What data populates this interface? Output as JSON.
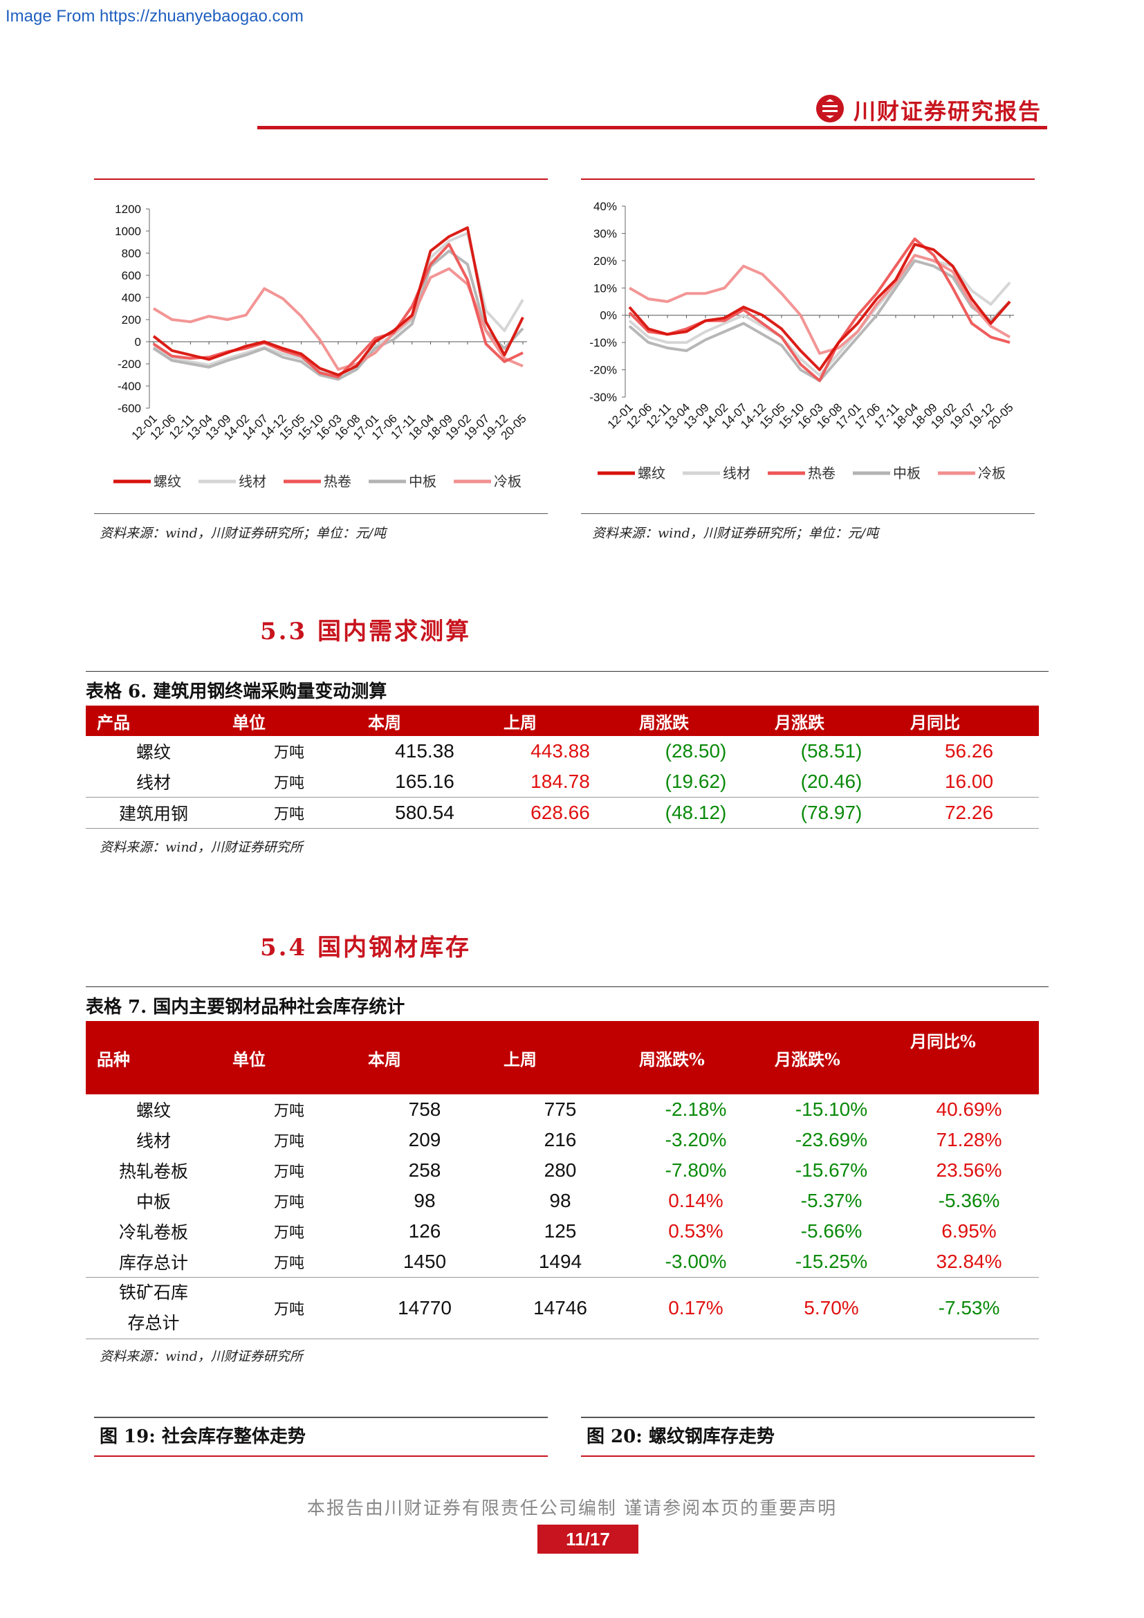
{
  "watermark": "Image From https://zhuanyebaogao.com",
  "header": {
    "brand": "川财证券研究报告"
  },
  "charts": [
    {
      "source": "资料来源：wind，川财证券研究所；单位：元/吨",
      "chart_data": {
        "type": "line",
        "yticks": [
          "1200",
          "1000",
          "800",
          "600",
          "400",
          "200",
          "0",
          "-200",
          "-400",
          "-600"
        ],
        "ylim": [
          -600,
          1200
        ],
        "x": [
          "12-01",
          "12-06",
          "12-11",
          "13-04",
          "13-09",
          "14-02",
          "14-07",
          "14-12",
          "15-05",
          "15-10",
          "16-03",
          "16-08",
          "17-01",
          "17-06",
          "17-11",
          "18-04",
          "18-09",
          "19-02",
          "19-07",
          "19-12",
          "20-05"
        ],
        "series": [
          {
            "name": "螺纹",
            "color": "#d9120c",
            "values": [
              50,
              -80,
              -120,
              -160,
              -100,
              -40,
              0,
              -60,
              -110,
              -240,
              -300,
              -220,
              0,
              100,
              240,
              820,
              950,
              1030,
              180,
              -120,
              220
            ]
          },
          {
            "name": "线材",
            "color": "#d4d4d4",
            "values": [
              -50,
              -150,
              -180,
              -210,
              -150,
              -100,
              -50,
              -110,
              -150,
              -260,
              -310,
              -230,
              -40,
              60,
              200,
              760,
              910,
              980,
              280,
              100,
              380
            ]
          },
          {
            "name": "热卷",
            "color": "#ee5555",
            "values": [
              -20,
              -130,
              -150,
              -140,
              -90,
              -60,
              -10,
              -80,
              -130,
              -280,
              -320,
              -150,
              30,
              80,
              320,
              700,
              880,
              560,
              -20,
              -180,
              -100
            ]
          },
          {
            "name": "中板",
            "color": "#b3b3b3",
            "values": [
              -60,
              -170,
              -200,
              -230,
              -170,
              -120,
              -60,
              -140,
              -180,
              -300,
              -340,
              -250,
              -60,
              20,
              160,
              680,
              820,
              700,
              100,
              -60,
              120
            ]
          },
          {
            "name": "冷板",
            "color": "#f28f8f",
            "values": [
              300,
              200,
              180,
              230,
              200,
              240,
              480,
              390,
              230,
              20,
              -250,
              -200,
              -100,
              80,
              220,
              580,
              660,
              520,
              100,
              -150,
              -220
            ]
          }
        ]
      }
    },
    {
      "source": "资料来源：wind，川财证券研究所；单位：元/吨",
      "chart_data": {
        "type": "line",
        "yticks": [
          "40%",
          "30%",
          "20%",
          "10%",
          "0%",
          "-10%",
          "-20%",
          "-30%"
        ],
        "ylim": [
          -30,
          40
        ],
        "x": [
          "12-01",
          "12-06",
          "12-11",
          "13-04",
          "13-09",
          "14-02",
          "14-07",
          "14-12",
          "15-05",
          "15-10",
          "16-03",
          "16-08",
          "17-01",
          "17-06",
          "17-11",
          "18-04",
          "18-09",
          "19-02",
          "19-07",
          "19-12",
          "20-05"
        ],
        "series": [
          {
            "name": "螺纹",
            "color": "#d9120c",
            "values": [
              3,
              -5,
              -7,
              -6,
              -2,
              -1,
              3,
              0,
              -5,
              -13,
              -20,
              -10,
              -3,
              6,
              13,
              26,
              24,
              18,
              6,
              -3,
              5
            ]
          },
          {
            "name": "线材",
            "color": "#d4d4d4",
            "values": [
              -2,
              -8,
              -10,
              -10,
              -6,
              -3,
              0,
              -4,
              -8,
              -16,
              -22,
              -14,
              -6,
              3,
              11,
              22,
              20,
              18,
              9,
              4,
              12
            ]
          },
          {
            "name": "热卷",
            "color": "#ee5555",
            "values": [
              1,
              -6,
              -7,
              -5,
              -2,
              -2,
              2,
              -3,
              -8,
              -18,
              -24,
              -10,
              0,
              8,
              18,
              28,
              22,
              10,
              -3,
              -8,
              -10
            ]
          },
          {
            "name": "中板",
            "color": "#b3b3b3",
            "values": [
              -4,
              -10,
              -12,
              -13,
              -9,
              -6,
              -3,
              -7,
              -11,
              -20,
              -24,
              -16,
              -8,
              0,
              10,
              20,
              18,
              14,
              3,
              -2,
              5
            ]
          },
          {
            "name": "冷板",
            "color": "#f28f8f",
            "values": [
              10,
              6,
              5,
              8,
              8,
              10,
              18,
              15,
              8,
              0,
              -14,
              -12,
              -6,
              4,
              12,
              22,
              20,
              16,
              4,
              -4,
              -8
            ]
          }
        ]
      }
    }
  ],
  "sections": {
    "s53": "5.3 国内需求测算",
    "s54": "5.4 国内钢材库存"
  },
  "table6": {
    "caption": "表格 6.  建筑用钢终端采购量变动测算",
    "headers": [
      "产品",
      "单位",
      "本周",
      "上周",
      "周涨跌",
      "月涨跌",
      "月同比"
    ],
    "rows": [
      [
        "螺纹",
        "万吨",
        "415.38",
        "443.88",
        "(28.50)",
        "(58.51)",
        "56.26"
      ],
      [
        "线材",
        "万吨",
        "165.16",
        "184.78",
        "(19.62)",
        "(20.46)",
        "16.00"
      ],
      [
        "建筑用钢",
        "万吨",
        "580.54",
        "628.66",
        "(48.12)",
        "(78.97)",
        "72.26"
      ]
    ],
    "source": "资料来源：wind，川财证券研究所"
  },
  "table7": {
    "caption": "表格 7.  国内主要钢材品种社会库存统计",
    "headers": [
      "品种",
      "单位",
      "本周",
      "上周",
      "周涨跌%",
      "月涨跌%",
      "月同比%"
    ],
    "rows": [
      [
        "螺纹",
        "万吨",
        "758",
        "775",
        "-2.18%",
        "-15.10%",
        "40.69%"
      ],
      [
        "线材",
        "万吨",
        "209",
        "216",
        "-3.20%",
        "-23.69%",
        "71.28%"
      ],
      [
        "热轧卷板",
        "万吨",
        "258",
        "280",
        "-7.80%",
        "-15.67%",
        "23.56%"
      ],
      [
        "中板",
        "万吨",
        "98",
        "98",
        "0.14%",
        "-5.37%",
        "-5.36%"
      ],
      [
        "冷轧卷板",
        "万吨",
        "126",
        "125",
        "0.53%",
        "-5.66%",
        "6.95%"
      ],
      [
        "库存总计",
        "万吨",
        "1450",
        "1494",
        "-3.00%",
        "-15.25%",
        "32.84%"
      ],
      [
        "铁矿石库存总计",
        "万吨",
        "14770",
        "14746",
        "0.17%",
        "5.70%",
        "-7.53%"
      ]
    ],
    "source": "资料来源：wind，川财证券研究所"
  },
  "figures": {
    "fig19": "图 19:  社会库存整体走势",
    "fig20": "图 20:  螺纹钢库存走势"
  },
  "footer": {
    "disclaimer": "本报告由川财证券有限责任公司编制  谨请参阅本页的重要声明",
    "page": "11/17"
  }
}
